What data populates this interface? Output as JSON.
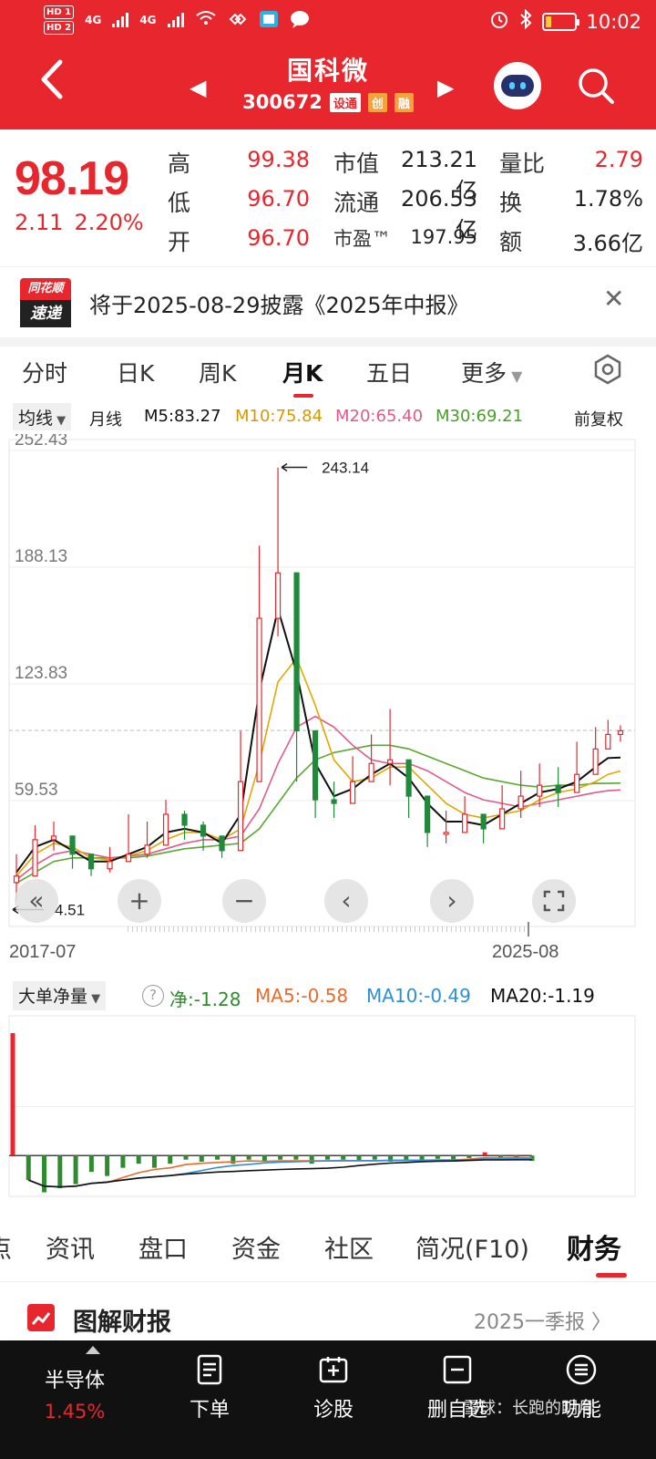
{
  "status_bar": {
    "time": "10:02",
    "hd1": "HD 1",
    "hd2": "HD 2",
    "net1": "4G",
    "net2": "4G"
  },
  "header": {
    "stock_name": "国科微",
    "stock_code": "300672",
    "tags": [
      "设通",
      "创",
      "融"
    ]
  },
  "quote": {
    "price": "98.19",
    "change": "2.11",
    "change_pct": "2.20%",
    "high_label": "高",
    "high": "99.38",
    "low_label": "低",
    "low": "96.70",
    "open_label": "开",
    "open": "96.70",
    "mcap_label": "市值",
    "mcap": "213.21亿",
    "float_label": "流通",
    "float": "206.53亿",
    "pe_label": "市盈™",
    "pe": "197.95",
    "vol_ratio_label": "量比",
    "vol_ratio": "2.79",
    "turnover_label": "换",
    "turnover": "1.78%",
    "amount_label": "额",
    "amount": "3.66亿"
  },
  "news": {
    "logo_top": "同花顺",
    "logo_bottom": "速递",
    "text": "将于2025-08-29披露《2025年中报》",
    "close": "✕"
  },
  "period_tabs": [
    "分时",
    "日K",
    "周K",
    "月K",
    "五日",
    "更多"
  ],
  "period_active": 3,
  "ma_line": {
    "dropdown": "均线",
    "period": "月线",
    "m5": "M5:83.27",
    "m10": "M10:75.84",
    "m20": "M20:65.40",
    "m30": "M30:69.21",
    "adjust": "前复权"
  },
  "colors": {
    "brand_red": "#e8262d",
    "up": "#e8262d",
    "down": "#1f8a3a",
    "m5": "#111111",
    "m10": "#e0a800",
    "m20": "#e25a8a",
    "m30": "#5aa832",
    "ma5_flow": "#e86b2d",
    "ma10_flow": "#2f8fd6",
    "net_flow": "#2e8b2e"
  },
  "chart_data": [
    {
      "type": "candlestick",
      "title": "",
      "y_ticks": [
        "252.43",
        "188.13",
        "123.83",
        "59.53"
      ],
      "ylim": [
        -4.77,
        252.43
      ],
      "x_labels": [
        "2017-07",
        "2025-08"
      ],
      "annotation_high": "243.14",
      "annotation_low": "4.51",
      "current_price": 98.19,
      "x_count": 98,
      "x_index": [
        0,
        3,
        6,
        9,
        12,
        15,
        18,
        21,
        24,
        27,
        30,
        33,
        36,
        39,
        42,
        45,
        48,
        51,
        54,
        57,
        60,
        63,
        66,
        69,
        72,
        75,
        78,
        81,
        84,
        87,
        90,
        93,
        95,
        97
      ],
      "close": [
        18,
        38,
        40,
        30,
        22,
        26,
        30,
        35,
        52,
        46,
        40,
        32,
        70,
        160,
        185,
        98,
        60,
        58,
        70,
        80,
        82,
        62,
        42,
        42,
        52,
        44,
        55,
        62,
        68,
        64,
        74,
        88,
        96,
        98
      ],
      "high": [
        30,
        46,
        48,
        38,
        30,
        34,
        52,
        48,
        60,
        54,
        48,
        40,
        98,
        200,
        243,
        120,
        72,
        70,
        84,
        96,
        110,
        76,
        56,
        54,
        62,
        52,
        68,
        76,
        80,
        78,
        92,
        100,
        104,
        101
      ],
      "low": [
        4.5,
        28,
        32,
        22,
        18,
        20,
        26,
        28,
        40,
        38,
        32,
        28,
        50,
        120,
        150,
        70,
        50,
        50,
        60,
        70,
        68,
        50,
        34,
        36,
        42,
        36,
        46,
        50,
        56,
        56,
        64,
        80,
        88,
        92
      ],
      "m5": [
        20,
        34,
        38,
        32,
        26,
        26,
        30,
        34,
        42,
        44,
        42,
        36,
        52,
        120,
        165,
        130,
        80,
        62,
        66,
        74,
        80,
        72,
        58,
        48,
        48,
        46,
        52,
        58,
        64,
        66,
        70,
        78,
        83,
        83.27
      ],
      "m10": [
        18,
        30,
        36,
        34,
        28,
        27,
        29,
        32,
        38,
        42,
        42,
        38,
        44,
        80,
        125,
        138,
        112,
        82,
        70,
        72,
        78,
        78,
        68,
        58,
        52,
        50,
        52,
        54,
        60,
        64,
        66,
        70,
        74,
        75.84
      ],
      "m20": [
        16,
        24,
        30,
        32,
        30,
        28,
        29,
        30,
        33,
        36,
        38,
        38,
        40,
        55,
        80,
        100,
        106,
        100,
        90,
        82,
        80,
        80,
        76,
        70,
        64,
        60,
        58,
        56,
        58,
        60,
        62,
        64,
        65,
        65.4
      ],
      "m30": [
        14,
        20,
        26,
        28,
        28,
        28,
        28,
        29,
        31,
        33,
        34,
        35,
        36,
        44,
        58,
        72,
        82,
        86,
        88,
        90,
        90,
        88,
        84,
        80,
        76,
        72,
        70,
        68,
        67,
        68,
        68,
        69,
        69,
        69.21
      ]
    },
    {
      "type": "bar",
      "title": "大单净量",
      "series": [
        {
          "name": "净",
          "latest": "-1.28"
        },
        {
          "name": "MA5",
          "latest": "-0.58"
        },
        {
          "name": "MA10",
          "latest": "-0.49"
        },
        {
          "name": "MA20",
          "latest": "-1.19"
        }
      ],
      "values": [
        30,
        -6,
        -9,
        -8,
        -7,
        -4,
        -5,
        -3,
        -2,
        -3,
        -2,
        -1,
        -1.5,
        -1,
        -2,
        -1,
        -1.5,
        -1,
        -1,
        -2,
        -1,
        -1,
        -1.2,
        -1,
        -1.5,
        -1,
        -1,
        -0.8,
        -1,
        -0.6,
        0.8,
        -1,
        -0.5,
        -1.28
      ],
      "ylim": [
        -10,
        32
      ]
    }
  ],
  "chart_controls": [
    "«",
    "+",
    "−",
    "‹",
    "›"
  ],
  "flow_header": {
    "dropdown": "大单净量",
    "help": "?",
    "net": "净:-1.28",
    "ma5": "MA5:-0.58",
    "ma10": "MA10:-0.49",
    "ma20": "MA20:-1.19"
  },
  "section_tabs": [
    "资讯",
    "盘口",
    "资金",
    "社区",
    "简况(F10)",
    "财务"
  ],
  "section_active": 5,
  "report": {
    "title": "图解财报",
    "period": "2025一季报 〉"
  },
  "bottom_nav": {
    "sector_name": "半导体",
    "sector_change": "1.45%",
    "items": [
      "下单",
      "诊股",
      "删自选",
      "功能"
    ],
    "watermark": "雪球：长跑的明月"
  }
}
